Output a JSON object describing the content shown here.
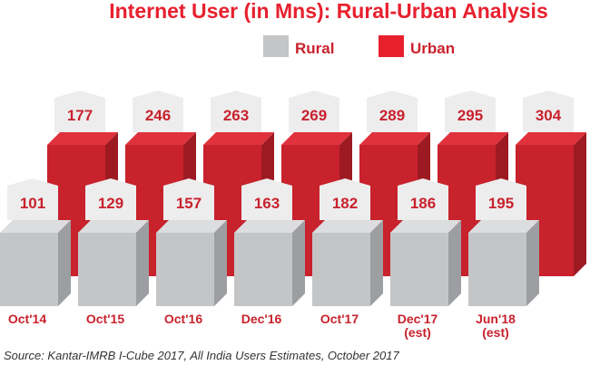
{
  "chart_data": {
    "type": "bar",
    "title": "Internet User (in Mns): Rural-Urban Analysis",
    "categories": [
      "Oct'14",
      "Oct'15",
      "Oct'16",
      "Dec'16",
      "Oct'17",
      "Dec'17\n(est)",
      "Jun'18\n(est)"
    ],
    "series": [
      {
        "name": "Rural",
        "values": [
          101,
          129,
          157,
          163,
          182,
          186,
          195
        ]
      },
      {
        "name": "Urban",
        "values": [
          177,
          246,
          263,
          269,
          289,
          295,
          304
        ]
      }
    ],
    "source": "Source: Kantar-IMRB I-Cube 2017, All India Users Estimates, October 2017"
  },
  "colors": {
    "title": "#e8202e",
    "rural_front": "#c4c5c7",
    "rural_side": "#9c9ea1",
    "rural_top": "#dcdddf",
    "urban_front": "#c8222d",
    "urban_side": "#9e1a23",
    "urban_top": "#e0323d",
    "label_box": "#ededed",
    "label_text": "#c8222d",
    "axis_text": "#c8222d",
    "source_text": "#333333"
  }
}
